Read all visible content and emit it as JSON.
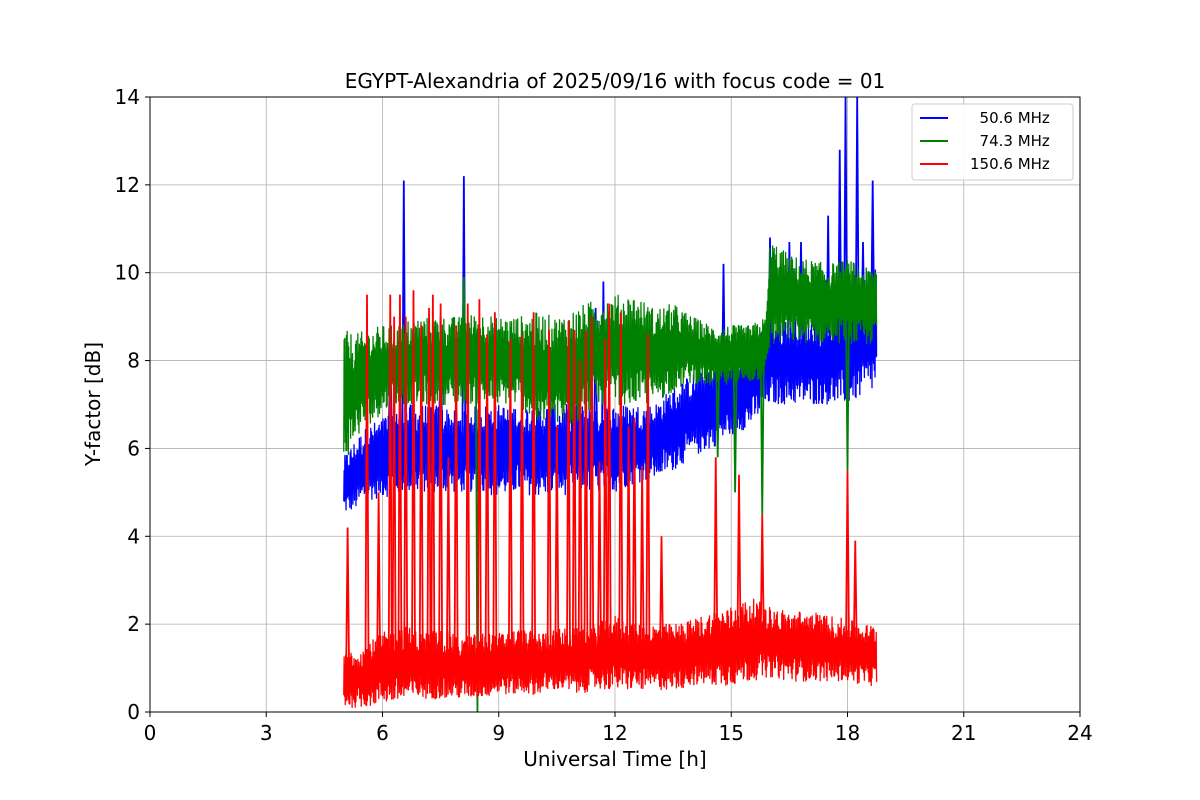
{
  "chart_data": {
    "type": "line",
    "title": "EGYPT-Alexandria of 2025/09/16 with focus code = 01",
    "xlabel": "Universal Time [h]",
    "ylabel": "Y-factor [dB]",
    "xlim": [
      0,
      24
    ],
    "ylim": [
      0,
      14
    ],
    "xticks": [
      0,
      3,
      6,
      9,
      12,
      15,
      18,
      21,
      24
    ],
    "yticks": [
      0,
      2,
      4,
      6,
      8,
      10,
      12,
      14
    ],
    "grid": true,
    "legend_position": "top-right",
    "series": [
      {
        "name": "  50.6 MHz",
        "color": "#0000ff",
        "x": [
          5.0,
          5.3,
          5.6,
          6.0,
          6.3,
          6.6,
          7.0,
          7.5,
          8.0,
          8.5,
          9.0,
          9.5,
          10.0,
          10.5,
          11.0,
          11.5,
          12.0,
          12.5,
          13.0,
          13.5,
          14.0,
          14.5,
          15.0,
          15.5,
          16.0,
          16.5,
          17.0,
          17.5,
          18.0,
          18.5,
          18.75
        ],
        "min": [
          4.5,
          4.6,
          4.8,
          4.9,
          4.9,
          5.0,
          5.0,
          5.0,
          5.0,
          5.0,
          4.9,
          5.0,
          4.9,
          4.9,
          5.0,
          5.0,
          5.0,
          5.2,
          5.3,
          5.5,
          5.8,
          6.0,
          6.3,
          6.5,
          7.0,
          7.0,
          7.0,
          7.0,
          7.0,
          7.2,
          7.3
        ],
        "max": [
          5.8,
          6.2,
          6.5,
          6.7,
          7.0,
          7.0,
          7.0,
          7.0,
          6.8,
          7.0,
          7.0,
          7.0,
          7.0,
          7.0,
          7.0,
          7.0,
          7.0,
          7.0,
          7.0,
          7.4,
          7.7,
          8.0,
          8.2,
          8.4,
          9.0,
          9.0,
          9.0,
          9.0,
          9.5,
          9.8,
          10.2
        ],
        "spikes": [
          [
            6.55,
            12.1
          ],
          [
            8.1,
            12.2
          ],
          [
            6.2,
            8.8
          ],
          [
            7.5,
            9.0
          ],
          [
            11.7,
            9.8
          ],
          [
            11.5,
            9.2
          ],
          [
            14.8,
            10.2
          ],
          [
            16.0,
            10.8
          ],
          [
            16.5,
            10.7
          ],
          [
            16.8,
            10.7
          ],
          [
            17.5,
            11.3
          ],
          [
            17.8,
            12.8
          ],
          [
            17.95,
            14.0
          ],
          [
            18.25,
            14.0
          ],
          [
            18.4,
            10.7
          ],
          [
            18.65,
            12.1
          ]
        ]
      },
      {
        "name": "  74.3 MHz",
        "color": "#008000",
        "x": [
          5.0,
          5.3,
          5.6,
          6.0,
          6.3,
          6.6,
          7.0,
          7.5,
          8.0,
          8.5,
          9.0,
          9.5,
          10.0,
          10.5,
          11.0,
          11.5,
          12.0,
          12.5,
          13.0,
          13.5,
          14.0,
          14.5,
          15.0,
          15.5,
          15.9,
          16.0,
          16.5,
          17.0,
          17.5,
          18.0,
          18.5,
          18.75
        ],
        "min": [
          5.6,
          6.2,
          6.5,
          6.8,
          7.0,
          7.0,
          7.0,
          7.0,
          7.0,
          7.0,
          7.0,
          7.0,
          6.5,
          6.5,
          6.5,
          7.0,
          7.0,
          7.0,
          7.0,
          7.3,
          7.5,
          7.4,
          7.4,
          7.5,
          7.6,
          8.3,
          8.4,
          8.4,
          8.4,
          8.4,
          8.3,
          8.5
        ],
        "max": [
          8.7,
          8.6,
          8.7,
          8.8,
          8.8,
          8.9,
          9.0,
          9.0,
          9.0,
          9.1,
          9.0,
          9.0,
          9.1,
          9.0,
          9.2,
          9.4,
          9.5,
          9.5,
          9.2,
          9.3,
          9.0,
          8.8,
          8.8,
          8.8,
          9.0,
          10.8,
          10.4,
          10.3,
          10.2,
          10.3,
          10.1,
          10.2
        ],
        "spikes": [
          [
            8.1,
            9.9
          ],
          [
            14.65,
            5.8
          ],
          [
            15.1,
            5.0
          ],
          [
            15.8,
            4.5
          ],
          [
            18.0,
            5.5
          ],
          [
            8.45,
            0.0
          ]
        ]
      },
      {
        "name": "150.6 MHz",
        "color": "#ff0000",
        "x": [
          5.0,
          5.5,
          6.0,
          6.5,
          7.0,
          7.5,
          8.0,
          8.5,
          9.0,
          9.5,
          10.0,
          10.5,
          11.0,
          11.5,
          12.0,
          12.5,
          13.0,
          13.5,
          14.0,
          14.5,
          15.0,
          15.5,
          16.0,
          16.5,
          17.0,
          17.5,
          18.0,
          18.5,
          18.75
        ],
        "min": [
          0.1,
          0.1,
          0.2,
          0.2,
          0.3,
          0.3,
          0.3,
          0.3,
          0.4,
          0.4,
          0.4,
          0.5,
          0.4,
          0.5,
          0.5,
          0.5,
          0.5,
          0.5,
          0.6,
          0.6,
          0.6,
          0.7,
          0.8,
          0.7,
          0.7,
          0.7,
          0.7,
          0.6,
          0.6
        ],
        "max": [
          1.4,
          1.5,
          1.8,
          2.0,
          1.8,
          1.9,
          1.7,
          1.8,
          1.8,
          1.9,
          1.8,
          1.9,
          1.9,
          2.0,
          2.2,
          2.0,
          2.0,
          2.0,
          2.1,
          2.3,
          2.4,
          2.6,
          2.4,
          2.3,
          2.3,
          2.2,
          2.1,
          2.0,
          2.0
        ],
        "spikes": [
          [
            5.1,
            4.2
          ],
          [
            5.6,
            9.5
          ],
          [
            5.9,
            5.0
          ],
          [
            6.2,
            9.5
          ],
          [
            6.3,
            9.0
          ],
          [
            6.45,
            9.5
          ],
          [
            6.6,
            9.0
          ],
          [
            6.8,
            9.6
          ],
          [
            7.0,
            8.8
          ],
          [
            7.2,
            9.2
          ],
          [
            7.3,
            9.5
          ],
          [
            7.5,
            9.3
          ],
          [
            7.7,
            5.8
          ],
          [
            7.9,
            8.8
          ],
          [
            8.2,
            9.3
          ],
          [
            8.5,
            9.4
          ],
          [
            8.7,
            8.6
          ],
          [
            8.9,
            9.1
          ],
          [
            9.3,
            8.5
          ],
          [
            9.6,
            8.6
          ],
          [
            9.9,
            9.1
          ],
          [
            10.3,
            8.7
          ],
          [
            10.5,
            6.5
          ],
          [
            10.8,
            8.9
          ],
          [
            10.95,
            8.7
          ],
          [
            11.1,
            8.0
          ],
          [
            11.25,
            8.7
          ],
          [
            11.4,
            9.0
          ],
          [
            11.6,
            5.7
          ],
          [
            11.75,
            8.5
          ],
          [
            11.85,
            9.3
          ],
          [
            12.15,
            9.1
          ],
          [
            12.35,
            6.5
          ],
          [
            12.5,
            6.7
          ],
          [
            12.7,
            5.6
          ],
          [
            12.85,
            8.6
          ],
          [
            13.2,
            4.0
          ],
          [
            14.6,
            5.8
          ],
          [
            15.2,
            5.4
          ],
          [
            15.8,
            4.5
          ],
          [
            18.0,
            5.5
          ],
          [
            18.2,
            3.9
          ]
        ]
      }
    ]
  }
}
